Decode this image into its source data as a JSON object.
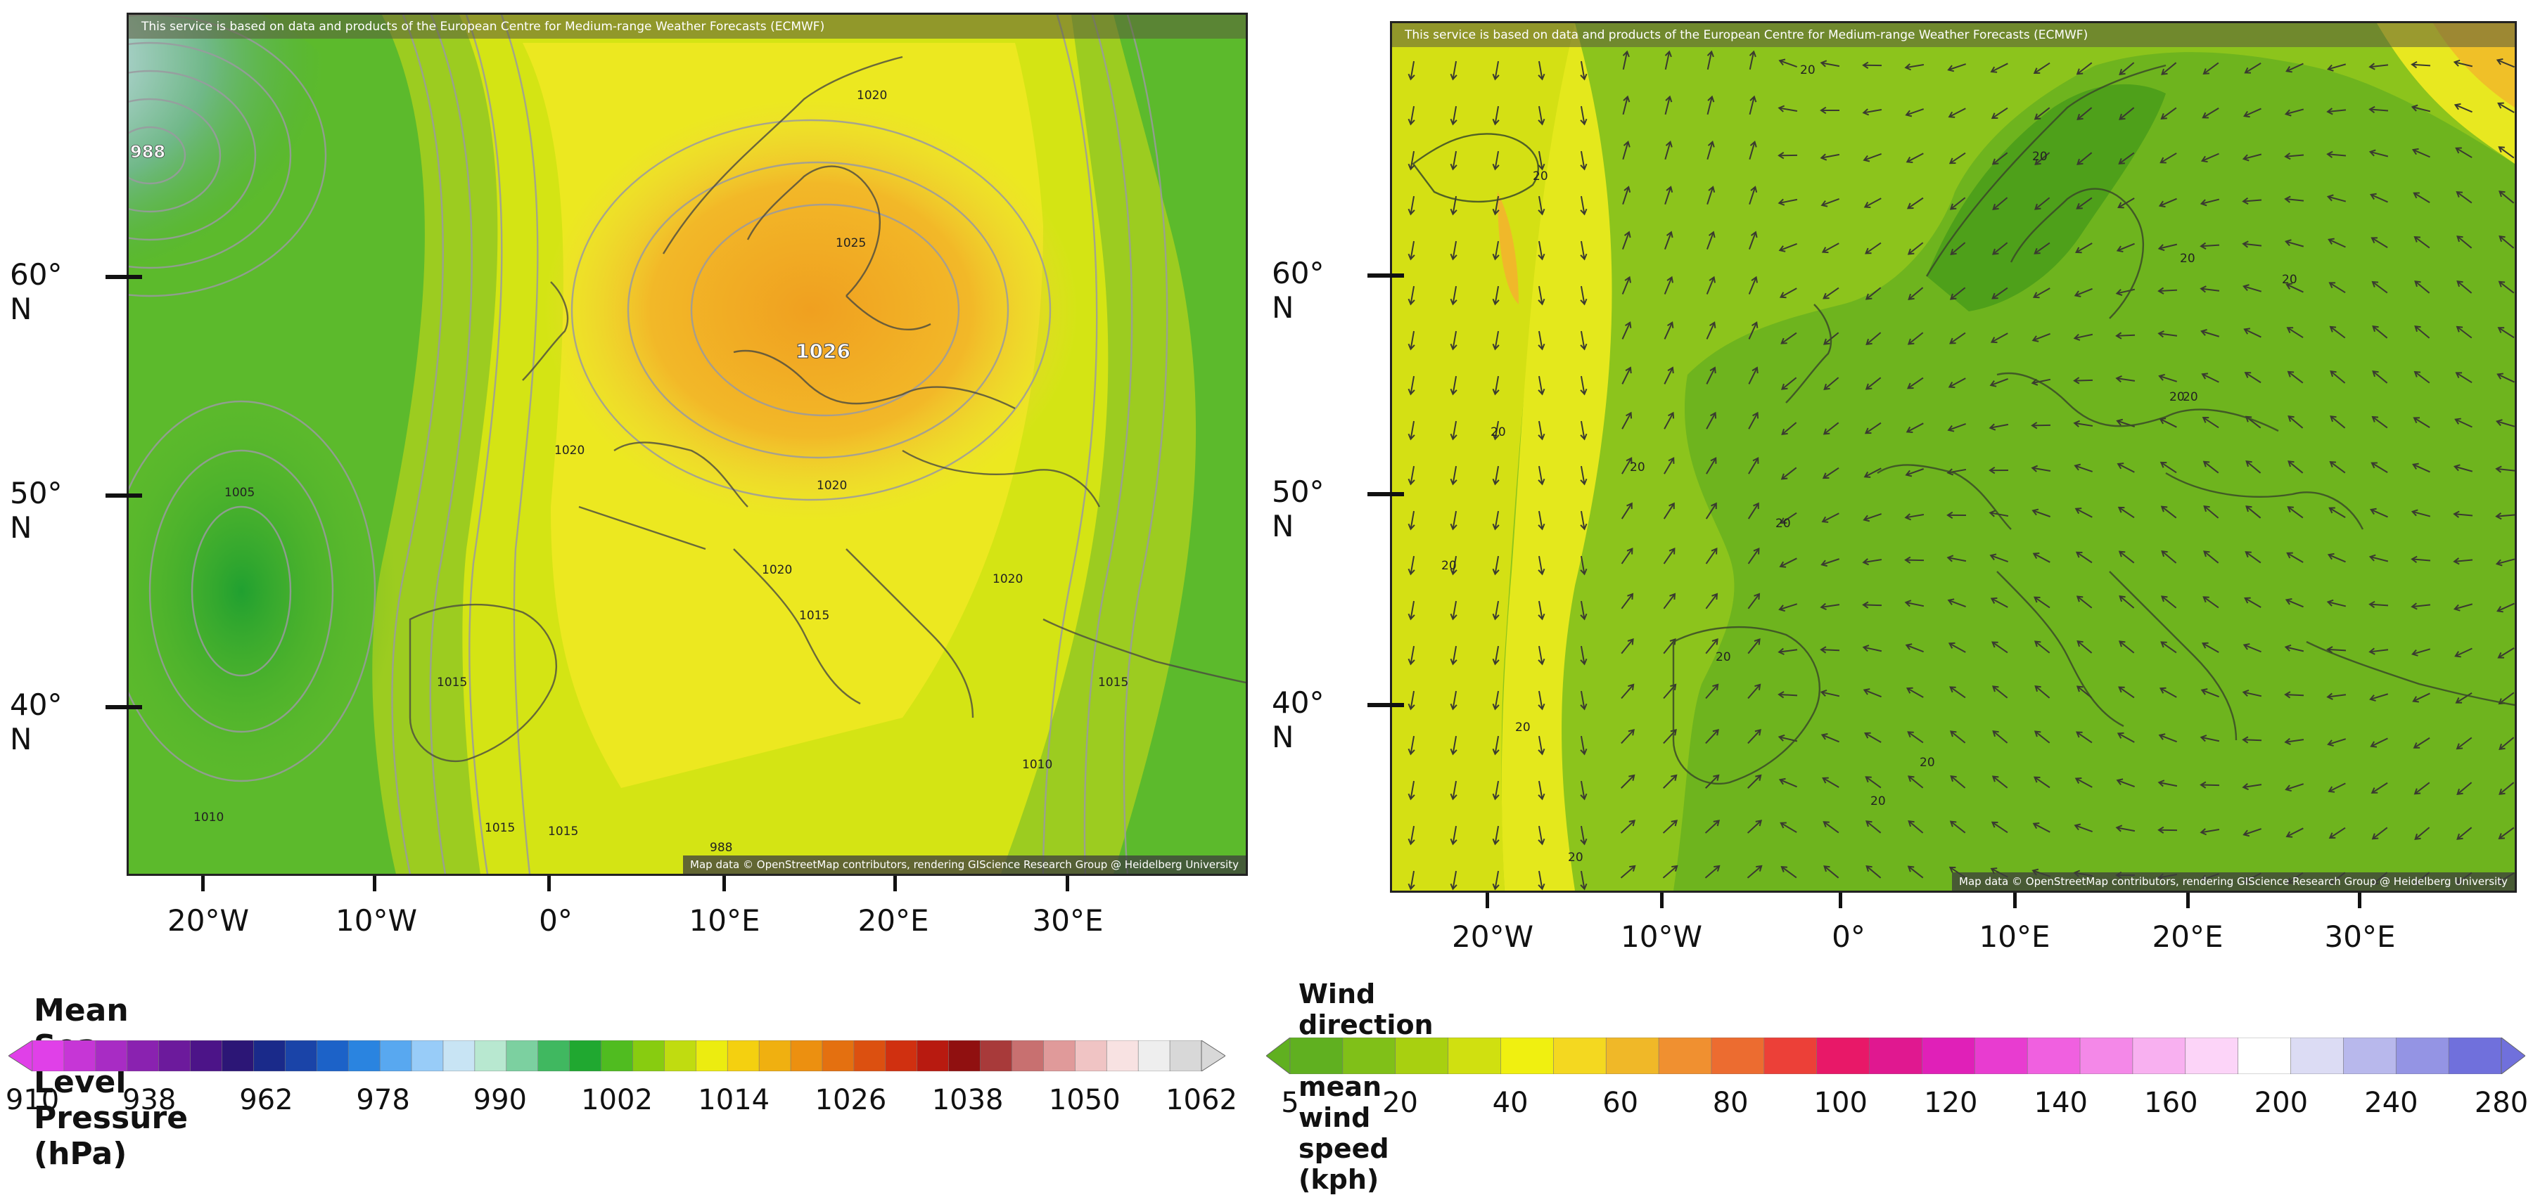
{
  "left_map": {
    "banner": "This service is based on data and products of the European Centre for Medium-range Weather Forecasts (ECMWF)",
    "credit": "Map data © OpenStreetMap contributors, rendering GIScience Research Group @ Heidelberg University",
    "lat_labels": [
      "60° N",
      "50° N",
      "40° N"
    ],
    "lon_labels": [
      "20°W",
      "10°W",
      "0°",
      "10°E",
      "20°E",
      "30°E"
    ],
    "contour_labels": [
      "1020",
      "1025",
      "1026",
      "1020",
      "1020",
      "1005",
      "1020",
      "1015",
      "1020",
      "1015",
      "1010",
      "1010",
      "1015",
      "1015",
      "1015",
      "988"
    ],
    "highlight_label": "1026"
  },
  "right_map": {
    "banner": "This service is based on data and products of the European Centre for Medium-range Weather Forecasts (ECMWF)",
    "credit": "Map data © OpenStreetMap contributors, rendering GIScience Research Group @ Heidelberg University",
    "lat_labels": [
      "60° N",
      "50° N",
      "40° N"
    ],
    "lon_labels": [
      "20°W",
      "10°W",
      "0°",
      "10°E",
      "20°E",
      "30°E"
    ],
    "speed_labels": [
      "20",
      "20",
      "20",
      "20",
      "20",
      "20",
      "20",
      "20",
      "20",
      "20",
      "20",
      "20",
      "20",
      "20",
      "20",
      "20"
    ]
  },
  "pressure_legend": {
    "title": "Mean Sea Level Pressure (hPa)",
    "labels": [
      "910",
      "938",
      "962",
      "978",
      "990",
      "1002",
      "1014",
      "1026",
      "1038",
      "1050",
      "1062"
    ],
    "colors": [
      "#e040e8",
      "#c636d6",
      "#a82cc4",
      "#8a22b0",
      "#6c1a9c",
      "#4c1488",
      "#2c1676",
      "#1a2a8a",
      "#1a44a8",
      "#1c62c8",
      "#2a84e0",
      "#58a8f0",
      "#98ccf8",
      "#c8e4f4",
      "#b8e8d0",
      "#7cd0a0",
      "#40b860",
      "#20a830",
      "#50bc20",
      "#88cc10",
      "#c0dc10",
      "#ecec10",
      "#f4d010",
      "#f0b010",
      "#ec9010",
      "#e47010",
      "#dc5010",
      "#d03010",
      "#b81a10",
      "#901010",
      "#a83a3a",
      "#c87070",
      "#e09a9a",
      "#f0c4c4",
      "#f8e2e2",
      "#eeeeee",
      "#d8d8d8"
    ]
  },
  "wind_legend": {
    "title": "Wind direction and mean wind speed (kph)",
    "labels": [
      "5",
      "20",
      "40",
      "60",
      "80",
      "100",
      "120",
      "140",
      "160",
      "200",
      "240",
      "280"
    ],
    "colors": [
      "#60b020",
      "#80c018",
      "#a8d010",
      "#d0e010",
      "#f0f010",
      "#f4d820",
      "#f0b828",
      "#f09030",
      "#ec6c30",
      "#ec4038",
      "#e81868",
      "#e01890",
      "#e020b8",
      "#e83cd0",
      "#f060e0",
      "#f488e8",
      "#f8b0f0",
      "#fcd4f8",
      "#ffffff",
      "#dcdcf4",
      "#b8b8ec",
      "#9494e4",
      "#7070dc"
    ]
  }
}
